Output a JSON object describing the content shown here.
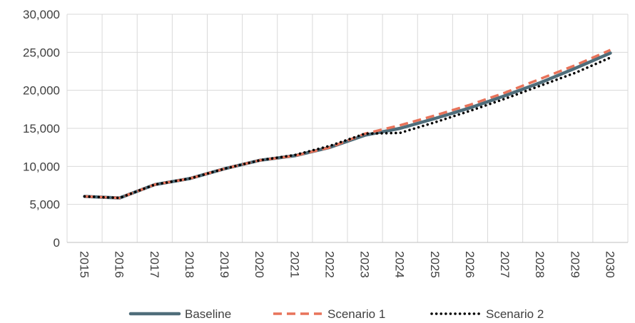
{
  "chart_data": {
    "type": "line",
    "title": "",
    "xlabel": "",
    "ylabel": "",
    "categories": [
      "2015",
      "2016",
      "2017",
      "2018",
      "2019",
      "2020",
      "2021",
      "2022",
      "2023",
      "2024",
      "2025",
      "2026",
      "2027",
      "2028",
      "2029",
      "2030"
    ],
    "ylim": [
      0,
      30000
    ],
    "yticks": [
      0,
      5000,
      10000,
      15000,
      20000,
      25000,
      30000
    ],
    "ytick_labels": [
      "0",
      "5,000",
      "10,000",
      "15,000",
      "20,000",
      "25,000",
      "30,000"
    ],
    "grid": "vertical and horizontal",
    "legend_position": "bottom",
    "series": [
      {
        "name": "Baseline",
        "color": "#4F6D7A",
        "style": "solid",
        "values": [
          6050,
          5850,
          7600,
          8400,
          9700,
          10800,
          11400,
          12500,
          14100,
          15000,
          16300,
          17700,
          19300,
          21000,
          22900,
          24900
        ]
      },
      {
        "name": "Scenario 1",
        "color": "#E8735A",
        "style": "dashed",
        "values": [
          6050,
          5850,
          7600,
          8400,
          9700,
          10800,
          11400,
          12500,
          14300,
          15400,
          16700,
          18100,
          19700,
          21500,
          23300,
          25300
        ]
      },
      {
        "name": "Scenario 2",
        "color": "#000000",
        "style": "dotted",
        "values": [
          6050,
          5850,
          7600,
          8400,
          9700,
          10800,
          11500,
          12700,
          14300,
          14400,
          15800,
          17300,
          18900,
          20600,
          22300,
          24300
        ]
      }
    ]
  }
}
